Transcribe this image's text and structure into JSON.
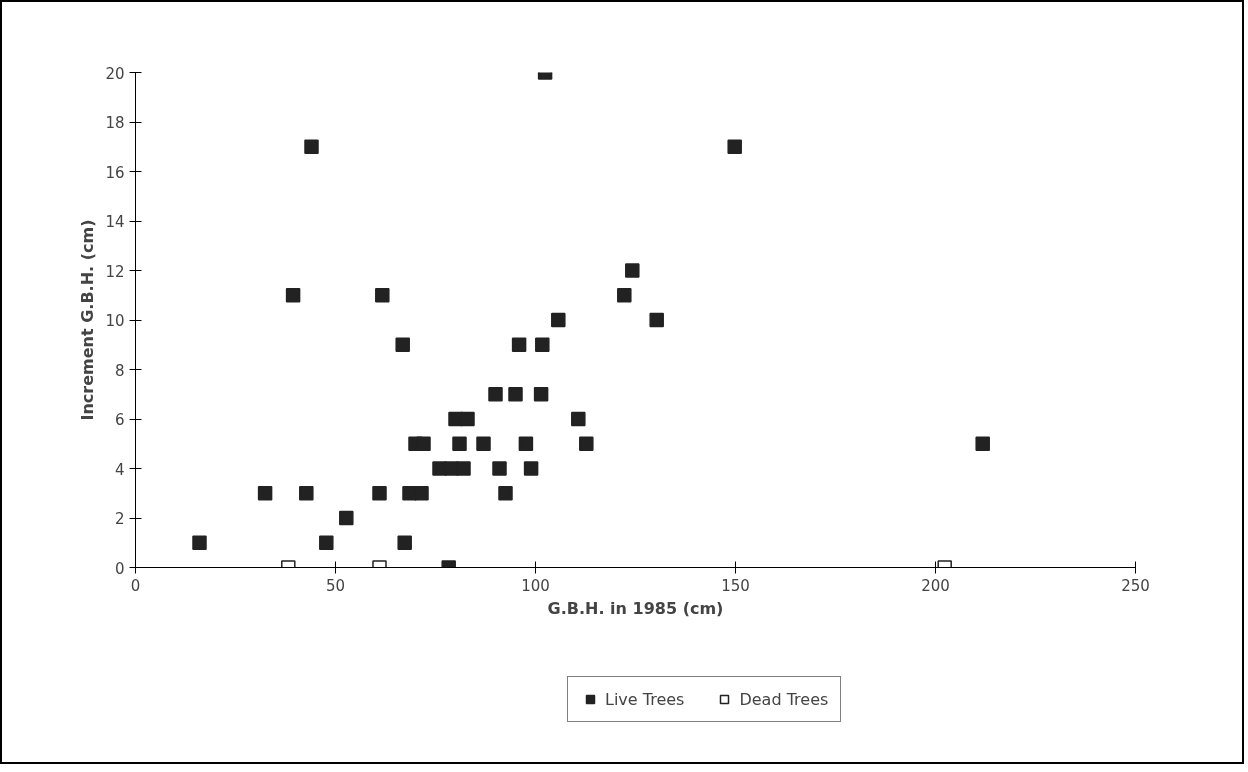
{
  "chart_data": {
    "type": "scatter",
    "xlabel": "G.B.H. in 1985 (cm)",
    "ylabel": "Increment G.B.H. (cm)",
    "xlim": [
      0,
      250
    ],
    "xticks": [
      0,
      50,
      100,
      150,
      200,
      250
    ],
    "ylim": [
      0,
      20
    ],
    "yticks": [
      0,
      2,
      4,
      6,
      8,
      10,
      12,
      14,
      16,
      18,
      20
    ],
    "grid": false,
    "legend": "bottom",
    "marker": "square",
    "series": [
      {
        "name": "Live Trees",
        "color": "#222222",
        "x": [
          16,
          32.4,
          42.7,
          44,
          39.4,
          47.7,
          52.7,
          61,
          61.7,
          67.3,
          66.8,
          68.5,
          71.5,
          70,
          72,
          78.3,
          76,
          79,
          82,
          80,
          83,
          81,
          87,
          90,
          95,
          91,
          92.5,
          97.6,
          95.9,
          110.7,
          112.7,
          98.9,
          101.4,
          101.7,
          105.7,
          102.4,
          149.8,
          124.2,
          122.2,
          130.3,
          211.8
        ],
        "values": [
          1,
          3,
          3,
          17,
          11,
          1,
          2,
          3,
          11,
          1,
          9,
          3,
          3,
          5,
          5,
          0,
          4,
          4,
          4,
          6,
          6,
          5,
          5,
          7,
          7,
          4,
          3,
          5,
          9,
          6,
          5,
          4,
          7,
          9,
          10,
          20,
          17,
          12,
          11,
          10,
          5
        ]
      },
      {
        "name": "Dead Trees",
        "color": "#ffffff",
        "x": [
          38.2,
          61,
          202.3
        ],
        "values": [
          0,
          0,
          0
        ]
      }
    ]
  }
}
